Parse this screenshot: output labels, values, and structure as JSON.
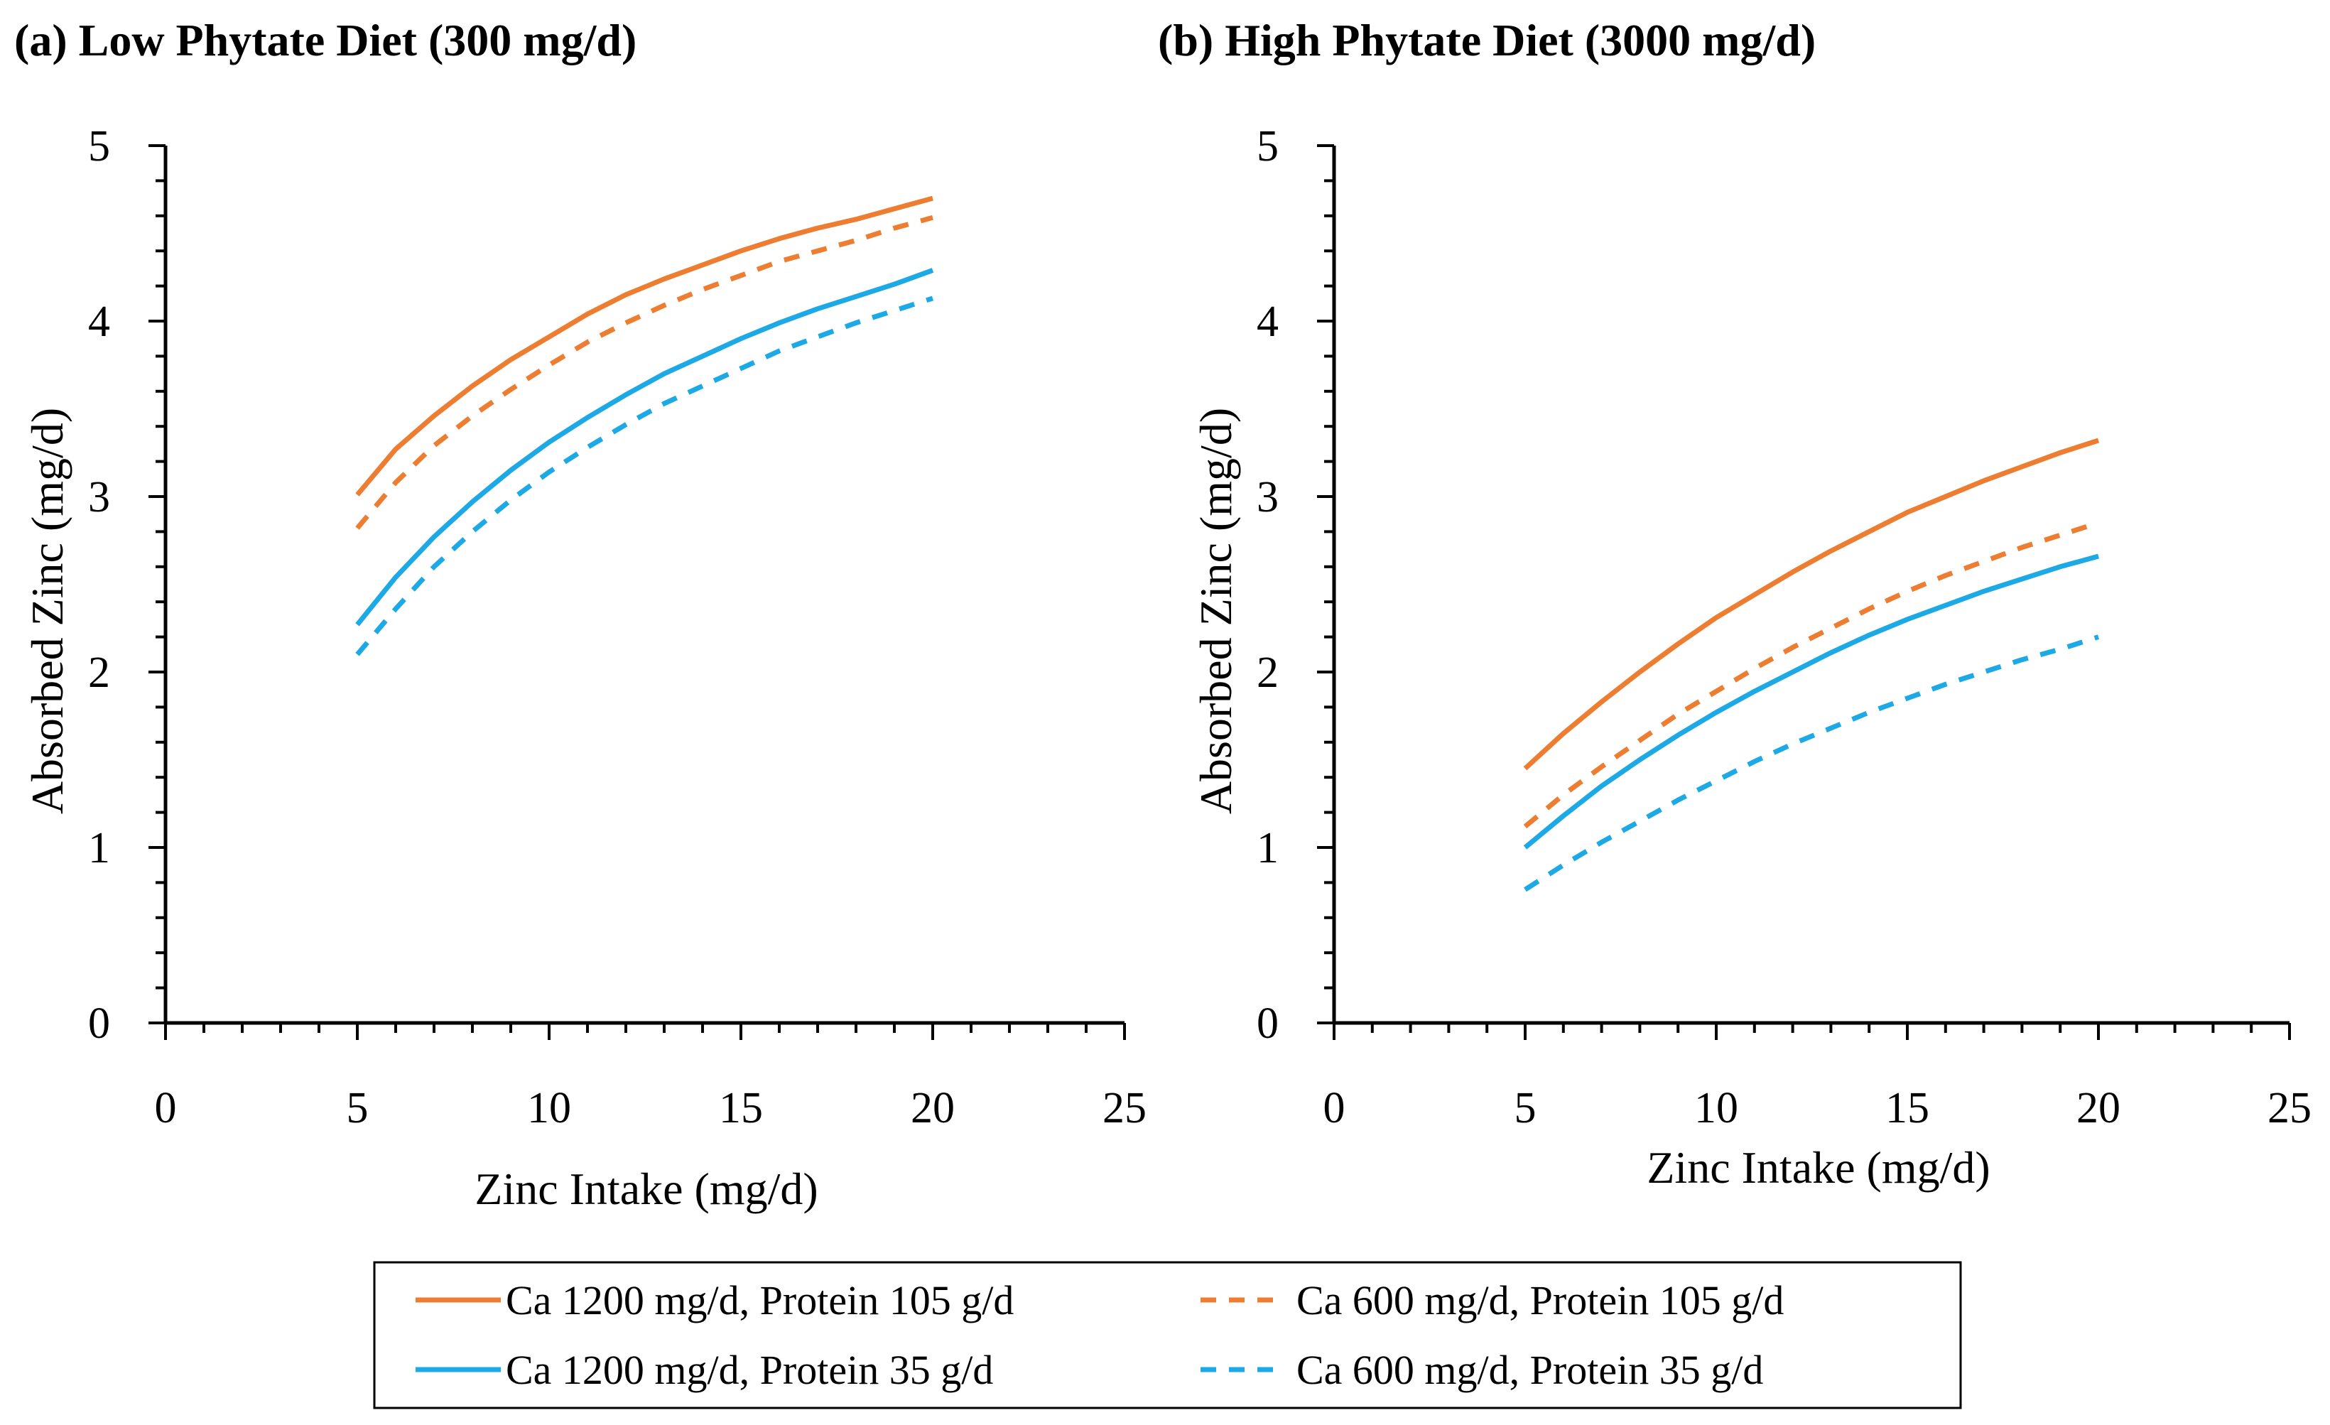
{
  "colors": {
    "orange": "#ED7D31",
    "blue": "#1CA9E6",
    "axis": "#000000"
  },
  "legend": [
    {
      "label": "Ca 1200 mg/d, Protein 105 g/d",
      "color": "#ED7D31",
      "dashed": false
    },
    {
      "label": "Ca 600 mg/d, Protein 105 g/d",
      "color": "#ED7D31",
      "dashed": true
    },
    {
      "label": "Ca 1200 mg/d, Protein 35 g/d",
      "color": "#1CA9E6",
      "dashed": false
    },
    {
      "label": "Ca 600 mg/d, Protein 35 g/d",
      "color": "#1CA9E6",
      "dashed": true
    }
  ],
  "chart_data": [
    {
      "type": "line",
      "title": "(a)  Low Phytate Diet (300 mg/d)",
      "xlabel": "Zinc Intake (mg/d)",
      "ylabel": "Absorbed Zinc (mg/d)",
      "xlim": [
        0,
        25
      ],
      "ylim": [
        0,
        5
      ],
      "xticks": [
        0,
        5,
        10,
        15,
        20,
        25
      ],
      "yticks": [
        0,
        1,
        2,
        3,
        4,
        5
      ],
      "x": [
        5,
        6,
        7,
        8,
        9,
        10,
        11,
        12,
        13,
        14,
        15,
        16,
        17,
        18,
        19,
        20
      ],
      "series": [
        {
          "name": "Ca 1200 mg/d, Protein 105 g/d",
          "color": "#ED7D31",
          "dashed": false,
          "values": [
            3.01,
            3.27,
            3.46,
            3.63,
            3.78,
            3.91,
            4.04,
            4.15,
            4.24,
            4.32,
            4.4,
            4.47,
            4.53,
            4.58,
            4.64,
            4.7
          ]
        },
        {
          "name": "Ca 600 mg/d, Protein 105 g/d",
          "color": "#ED7D31",
          "dashed": true,
          "values": [
            2.82,
            3.08,
            3.29,
            3.46,
            3.61,
            3.75,
            3.88,
            3.99,
            4.09,
            4.18,
            4.26,
            4.34,
            4.4,
            4.46,
            4.53,
            4.59
          ]
        },
        {
          "name": "Ca 1200 mg/d, Protein 35 g/d",
          "color": "#1CA9E6",
          "dashed": false,
          "values": [
            2.27,
            2.54,
            2.77,
            2.97,
            3.15,
            3.31,
            3.45,
            3.58,
            3.7,
            3.8,
            3.9,
            3.99,
            4.07,
            4.14,
            4.21,
            4.29
          ]
        },
        {
          "name": "Ca 600 mg/d, Protein 35 g/d",
          "color": "#1CA9E6",
          "dashed": true,
          "values": [
            2.1,
            2.36,
            2.6,
            2.8,
            2.98,
            3.14,
            3.28,
            3.41,
            3.53,
            3.63,
            3.73,
            3.83,
            3.91,
            3.99,
            4.06,
            4.13
          ]
        }
      ]
    },
    {
      "type": "line",
      "title": "(b)  High Phytate Diet (3000 mg/d)",
      "xlabel": "Zinc Intake (mg/d)",
      "ylabel": "Absorbed Zinc (mg/d)",
      "xlim": [
        0,
        25
      ],
      "ylim": [
        0,
        5
      ],
      "xticks": [
        0,
        5,
        10,
        15,
        20,
        25
      ],
      "yticks": [
        0,
        1,
        2,
        3,
        4,
        5
      ],
      "x": [
        5,
        6,
        7,
        8,
        9,
        10,
        11,
        12,
        13,
        14,
        15,
        16,
        17,
        18,
        19,
        20
      ],
      "series": [
        {
          "name": "Ca 1200 mg/d, Protein 105 g/d",
          "color": "#ED7D31",
          "dashed": false,
          "values": [
            1.45,
            1.65,
            1.83,
            2.0,
            2.16,
            2.31,
            2.44,
            2.57,
            2.69,
            2.8,
            2.91,
            3.0,
            3.09,
            3.17,
            3.25,
            3.32
          ]
        },
        {
          "name": "Ca 600 mg/d, Protein 105 g/d",
          "color": "#ED7D31",
          "dashed": true,
          "values": [
            1.12,
            1.3,
            1.46,
            1.61,
            1.76,
            1.89,
            2.02,
            2.14,
            2.25,
            2.36,
            2.46,
            2.55,
            2.63,
            2.71,
            2.78,
            2.85
          ]
        },
        {
          "name": "Ca 1200 mg/d, Protein 35 g/d",
          "color": "#1CA9E6",
          "dashed": false,
          "values": [
            1.0,
            1.18,
            1.35,
            1.5,
            1.64,
            1.77,
            1.89,
            2.0,
            2.11,
            2.21,
            2.3,
            2.38,
            2.46,
            2.53,
            2.6,
            2.66
          ]
        },
        {
          "name": "Ca 600 mg/d, Protein 35 g/d",
          "color": "#1CA9E6",
          "dashed": true,
          "values": [
            0.76,
            0.9,
            1.03,
            1.15,
            1.27,
            1.38,
            1.49,
            1.59,
            1.68,
            1.77,
            1.85,
            1.93,
            2.0,
            2.07,
            2.13,
            2.2
          ]
        }
      ]
    }
  ]
}
